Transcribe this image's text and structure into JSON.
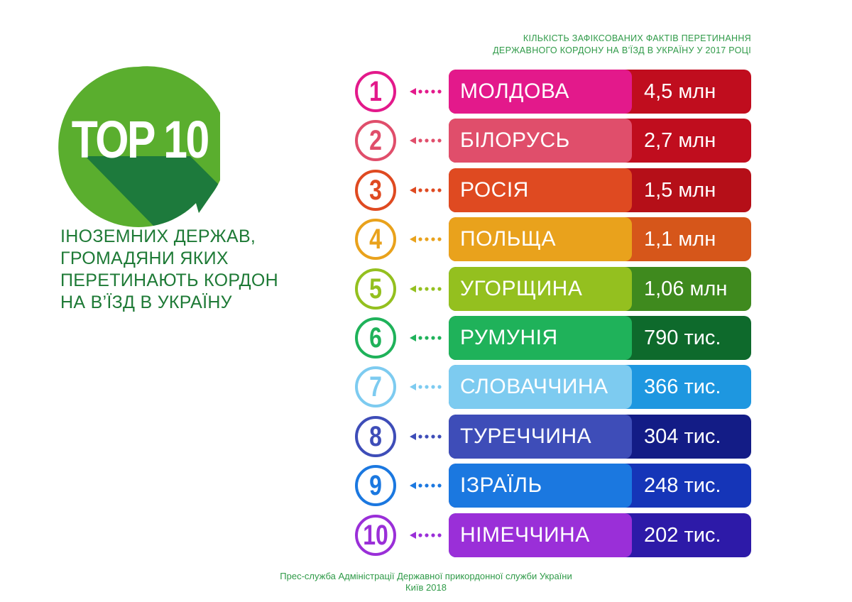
{
  "badge": {
    "text": "TOP 10",
    "circle_color": "#5aae2e",
    "shadow_color": "#1d7a3c"
  },
  "subtitle": {
    "lines": [
      "ІНОЗЕМНИХ ДЕРЖАВ,",
      "ГРОМАДЯНИ ЯКИХ",
      "ПЕРЕТИНАЮТЬ КОРДОН",
      "НА В’ЇЗД В УКРАЇНУ"
    ]
  },
  "header": {
    "lines": [
      "КІЛЬКІСТЬ ЗАФІКСОВАНИХ ФАКТІВ ПЕРЕТИНАННЯ",
      "ДЕРЖАВНОГО КОРДОНУ НА В’ЇЗД В УКРАЇНУ У 2017 РОЦІ"
    ]
  },
  "rows": [
    {
      "rank": "1",
      "country": "МОЛДОВА",
      "value": "4,5 млн",
      "color": "#e3198b",
      "dark": "#c00d1e"
    },
    {
      "rank": "2",
      "country": "БІЛОРУСЬ",
      "value": "2,7 млн",
      "color": "#e04e6b",
      "dark": "#c00d1e"
    },
    {
      "rank": "3",
      "country": "РОСІЯ",
      "value": "1,5 млн",
      "color": "#df4a21",
      "dark": "#b50f18"
    },
    {
      "rank": "4",
      "country": "ПОЛЬЩА",
      "value": "1,1 млн",
      "color": "#e9a21c",
      "dark": "#d6561a"
    },
    {
      "rank": "5",
      "country": "УГОРЩИНА",
      "value": "1,06 млн",
      "color": "#94c01f",
      "dark": "#3f8a1e"
    },
    {
      "rank": "6",
      "country": "РУМУНІЯ",
      "value": "790 тис.",
      "color": "#1fb25a",
      "dark": "#0e6a2c"
    },
    {
      "rank": "7",
      "country": "СЛОВАЧЧИНА",
      "value": "366 тис.",
      "color": "#7dcbf0",
      "dark": "#1e97e0"
    },
    {
      "rank": "8",
      "country": "ТУРЕЧЧИНА",
      "value": "304 тис.",
      "color": "#3e4db8",
      "dark": "#131c86"
    },
    {
      "rank": "9",
      "country": "ІЗРАЇЛЬ",
      "value": "248 тис.",
      "color": "#1b78e0",
      "dark": "#1535b8"
    },
    {
      "rank": "10",
      "country": "НІМЕЧЧИНА",
      "value": "202 тис.",
      "color": "#9a2fd8",
      "dark": "#2d1aa8"
    }
  ],
  "footer": {
    "line1": "Прес-служба Адміністрації Державної прикордонної служби України",
    "line2": "Київ 2018"
  }
}
